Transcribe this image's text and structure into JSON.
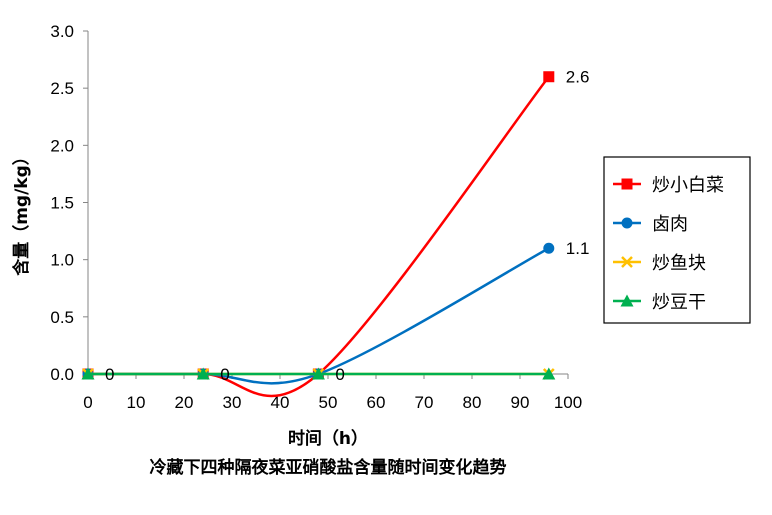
{
  "chart_data": {
    "type": "line",
    "title": "冷藏下四种隔夜菜亚硝酸盐含量随时间变化趋势",
    "xlabel": "时间（h）",
    "ylabel": "含量（mg/kg）",
    "xlim": [
      0,
      100
    ],
    "ylim": [
      0,
      3.0
    ],
    "x_ticks": [
      "0",
      "10",
      "20",
      "30",
      "40",
      "50",
      "60",
      "70",
      "80",
      "90",
      "100"
    ],
    "y_ticks": [
      "0.0",
      "0.5",
      "1.0",
      "1.5",
      "2.0",
      "2.5",
      "3.0"
    ],
    "grid": false,
    "legend_position": "right",
    "smooth": true,
    "series": [
      {
        "name": "炒小白菜",
        "color": "#ff0000",
        "marker": "square",
        "x": [
          0,
          24,
          48,
          96
        ],
        "y": [
          0,
          0,
          0,
          2.6
        ]
      },
      {
        "name": "卤肉",
        "color": "#0070c0",
        "marker": "circle",
        "x": [
          0,
          24,
          48,
          96
        ],
        "y": [
          0,
          0,
          0,
          1.1
        ]
      },
      {
        "name": "炒鱼块",
        "color": "#ffc000",
        "marker": "x",
        "x": [
          0,
          24,
          48,
          96
        ],
        "y": [
          0,
          0,
          0,
          0
        ]
      },
      {
        "name": "炒豆干",
        "color": "#00b050",
        "marker": "triangle",
        "x": [
          0,
          24,
          48,
          96
        ],
        "y": [
          0,
          0,
          0,
          0
        ]
      }
    ],
    "data_labels": [
      {
        "x": 0,
        "y": 0,
        "text": "0"
      },
      {
        "x": 24,
        "y": 0,
        "text": "0"
      },
      {
        "x": 48,
        "y": 0,
        "text": "0"
      },
      {
        "x": 96,
        "y": 2.6,
        "text": "2.6"
      },
      {
        "x": 96,
        "y": 1.1,
        "text": "1.1"
      }
    ]
  }
}
